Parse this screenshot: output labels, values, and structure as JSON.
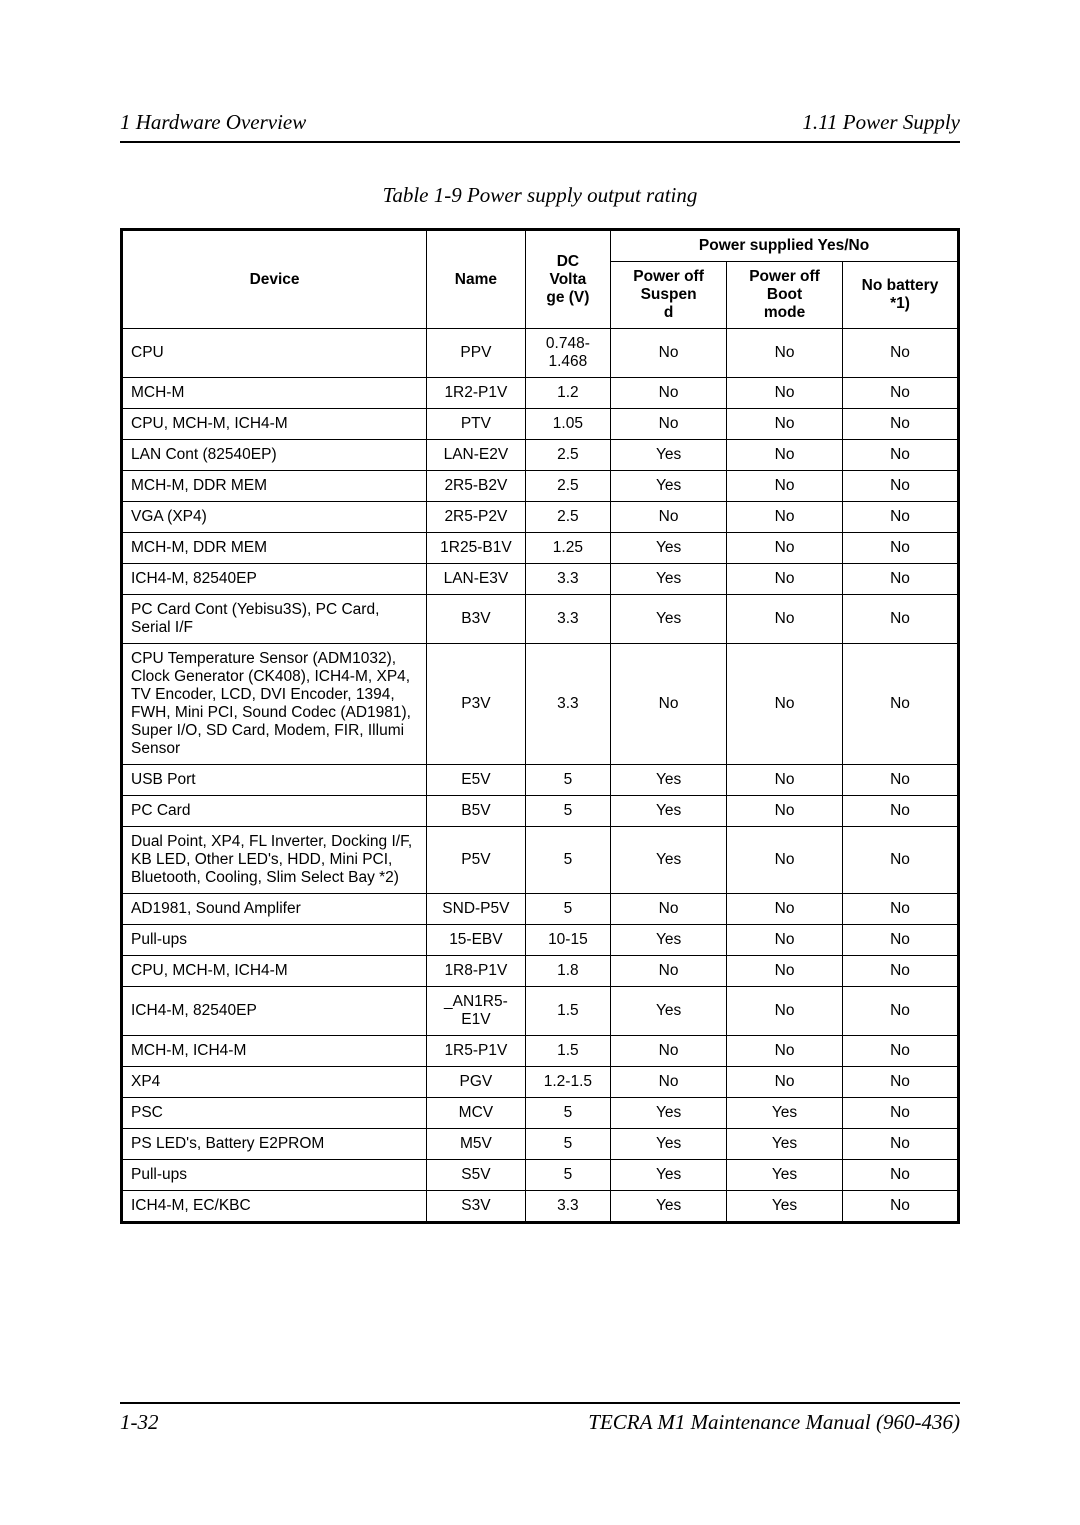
{
  "header": {
    "left": "1  Hardware Overview",
    "right": "1.11 Power Supply"
  },
  "caption": "Table 1-9   Power supply output rating",
  "columns": {
    "device": "Device",
    "name": "Name",
    "voltage_line1": "DC",
    "voltage_line2": "Volta",
    "voltage_line3": "ge (V)",
    "power_group": "Power supplied Yes/No",
    "suspend_line1": "Power off",
    "suspend_line2": "Suspen",
    "suspend_line3": "d",
    "boot_line1": "Power off",
    "boot_line2": "Boot",
    "boot_line3": "mode",
    "nobatt_line1": "No battery",
    "nobatt_line2": "*1)"
  },
  "rows": [
    {
      "device": "CPU",
      "name": "PPV",
      "volt": "0.748-1.468",
      "suspend": "No",
      "boot": "No",
      "nobatt": "No"
    },
    {
      "device": "MCH-M",
      "name": "1R2-P1V",
      "volt": "1.2",
      "suspend": "No",
      "boot": "No",
      "nobatt": "No"
    },
    {
      "device": "CPU, MCH-M, ICH4-M",
      "name": "PTV",
      "volt": "1.05",
      "suspend": "No",
      "boot": "No",
      "nobatt": "No"
    },
    {
      "device": "LAN Cont (82540EP)",
      "name": "LAN-E2V",
      "volt": "2.5",
      "suspend": "Yes",
      "boot": "No",
      "nobatt": "No"
    },
    {
      "device": "MCH-M, DDR MEM",
      "name": "2R5-B2V",
      "volt": "2.5",
      "suspend": "Yes",
      "boot": "No",
      "nobatt": "No"
    },
    {
      "device": "VGA (XP4)",
      "name": "2R5-P2V",
      "volt": "2.5",
      "suspend": "No",
      "boot": "No",
      "nobatt": "No"
    },
    {
      "device": "MCH-M, DDR MEM",
      "name": "1R25-B1V",
      "volt": "1.25",
      "suspend": "Yes",
      "boot": "No",
      "nobatt": "No"
    },
    {
      "device": "ICH4-M, 82540EP",
      "name": "LAN-E3V",
      "volt": "3.3",
      "suspend": "Yes",
      "boot": "No",
      "nobatt": "No"
    },
    {
      "device": "PC Card Cont (Yebisu3S), PC Card, Serial I/F",
      "name": "B3V",
      "volt": "3.3",
      "suspend": "Yes",
      "boot": "No",
      "nobatt": "No"
    },
    {
      "device": "CPU Temperature Sensor (ADM1032), Clock Generator (CK408), ICH4-M, XP4, TV Encoder, LCD, DVI Encoder, 1394, FWH, Mini PCI, Sound Codec (AD1981), Super I/O, SD Card, Modem, FIR, Illumi Sensor",
      "name": "P3V",
      "volt": "3.3",
      "suspend": "No",
      "boot": "No",
      "nobatt": "No"
    },
    {
      "device": "USB Port",
      "name": "E5V",
      "volt": "5",
      "suspend": "Yes",
      "boot": "No",
      "nobatt": "No"
    },
    {
      "device": "PC Card",
      "name": "B5V",
      "volt": "5",
      "suspend": "Yes",
      "boot": "No",
      "nobatt": "No"
    },
    {
      "device": "Dual Point, XP4, FL Inverter, Docking I/F, KB LED, Other LED's, HDD, Mini PCI, Bluetooth, Cooling, Slim Select Bay *2)",
      "name": "P5V",
      "volt": "5",
      "suspend": "Yes",
      "boot": "No",
      "nobatt": "No"
    },
    {
      "device": "AD1981, Sound Amplifer",
      "name": "SND-P5V",
      "volt": "5",
      "suspend": "No",
      "boot": "No",
      "nobatt": "No"
    },
    {
      "device": "Pull-ups",
      "name": "15-EBV",
      "volt": "10-15",
      "suspend": "Yes",
      "boot": "No",
      "nobatt": "No"
    },
    {
      "device": "CPU, MCH-M, ICH4-M",
      "name": "1R8-P1V",
      "volt": "1.8",
      "suspend": "No",
      "boot": "No",
      "nobatt": "No"
    },
    {
      "device": "ICH4-M, 82540EP",
      "name": "_AN1R5-E1V",
      "volt": "1.5",
      "suspend": "Yes",
      "boot": "No",
      "nobatt": "No"
    },
    {
      "device": "MCH-M, ICH4-M",
      "name": "1R5-P1V",
      "volt": "1.5",
      "suspend": "No",
      "boot": "No",
      "nobatt": "No"
    },
    {
      "device": "XP4",
      "name": "PGV",
      "volt": "1.2-1.5",
      "suspend": "No",
      "boot": "No",
      "nobatt": "No"
    },
    {
      "device": "PSC",
      "name": "MCV",
      "volt": "5",
      "suspend": "Yes",
      "boot": "Yes",
      "nobatt": "No"
    },
    {
      "device": "PS LED's, Battery E2PROM",
      "name": "M5V",
      "volt": "5",
      "suspend": "Yes",
      "boot": "Yes",
      "nobatt": "No"
    },
    {
      "device": "Pull-ups",
      "name": "S5V",
      "volt": "5",
      "suspend": "Yes",
      "boot": "Yes",
      "nobatt": "No"
    },
    {
      "device": "ICH4-M, EC/KBC",
      "name": "S3V",
      "volt": "3.3",
      "suspend": "Yes",
      "boot": "Yes",
      "nobatt": "No"
    }
  ],
  "footer": {
    "left": "1-32",
    "right": "TECRA M1 Maintenance Manual (960-436)"
  }
}
